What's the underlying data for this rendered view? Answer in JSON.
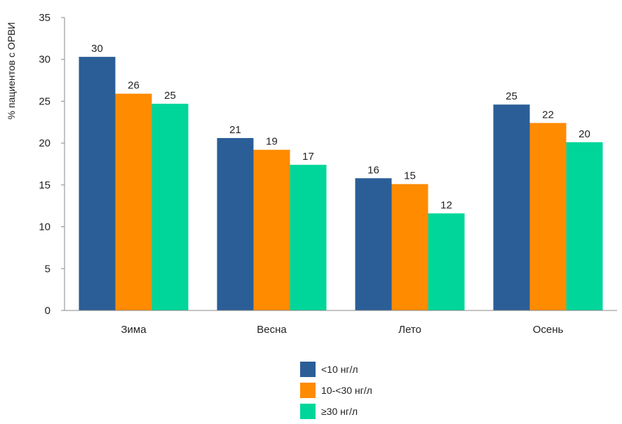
{
  "chart_data": {
    "type": "bar",
    "categories": [
      "Зима",
      "Весна",
      "Лето",
      "Осень"
    ],
    "series": [
      {
        "name": "<10 нг/л",
        "color": "#2b5e96",
        "values": [
          30,
          21,
          16,
          25
        ],
        "plotted": [
          30.3,
          20.6,
          15.8,
          24.6
        ],
        "labels": [
          "30",
          "21",
          "16",
          "25"
        ]
      },
      {
        "name": "10-<30 нг/л",
        "color": "#ff8c00",
        "values": [
          26,
          19,
          15,
          22
        ],
        "plotted": [
          25.9,
          19.2,
          15.1,
          22.4
        ],
        "labels": [
          "26",
          "19",
          "15",
          "22"
        ]
      },
      {
        "name": "≥30 нг/л",
        "color": "#00d69a",
        "values": [
          25,
          17,
          12,
          20
        ],
        "plotted": [
          24.7,
          17.4,
          11.6,
          20.1
        ],
        "labels": [
          "25",
          "17",
          "12",
          "20"
        ]
      }
    ],
    "ylabel": "% пациентов с ОРВИ",
    "xlabel": "",
    "ylim": [
      0,
      35
    ],
    "yticks": [
      "0",
      "5",
      "10",
      "15",
      "20",
      "25",
      "30",
      "35"
    ],
    "grid": false,
    "legend_position": "bottom-center"
  }
}
